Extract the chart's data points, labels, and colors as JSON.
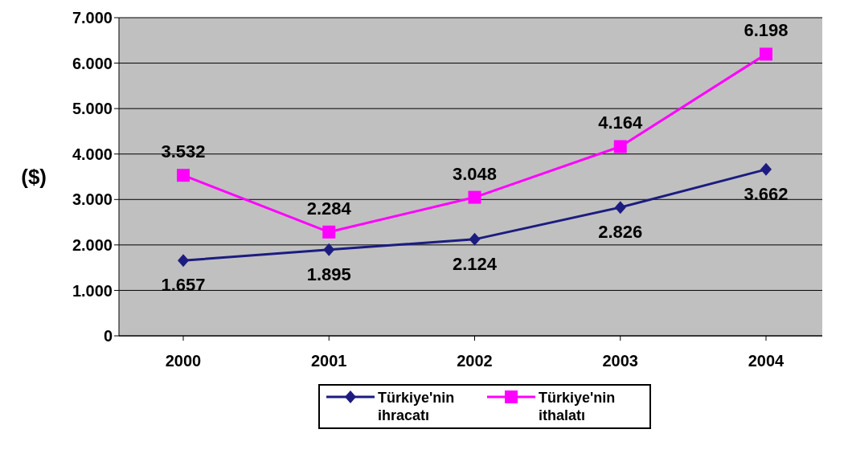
{
  "chart_data": {
    "type": "line",
    "ylabel": "($)",
    "categories": [
      "2000",
      "2001",
      "2002",
      "2003",
      "2004"
    ],
    "series": [
      {
        "name": "Türkiye'nin ihracatı",
        "color": "#1c1c80",
        "marker": "diamond",
        "values": [
          1657,
          1895,
          2124,
          2826,
          3662
        ],
        "value_labels": [
          "1.657",
          "1.895",
          "2.124",
          "2.826",
          "3.662"
        ]
      },
      {
        "name": "Türkiye'nin ithalatı",
        "color": "#ff00ff",
        "marker": "square",
        "values": [
          3532,
          2284,
          3048,
          4164,
          6198
        ],
        "value_labels": [
          "3.532",
          "2.284",
          "3.048",
          "4.164",
          "6.198"
        ]
      }
    ],
    "ylim": [
      0,
      7000
    ],
    "yticks": [
      {
        "value": 0,
        "label": "0"
      },
      {
        "value": 1000,
        "label": "1.000"
      },
      {
        "value": 2000,
        "label": "2.000"
      },
      {
        "value": 3000,
        "label": "3.000"
      },
      {
        "value": 4000,
        "label": "4.000"
      },
      {
        "value": 5000,
        "label": "5.000"
      },
      {
        "value": 6000,
        "label": "6.000"
      },
      {
        "value": 7000,
        "label": "7.000"
      }
    ],
    "grid": "y",
    "legend": "bottom"
  }
}
